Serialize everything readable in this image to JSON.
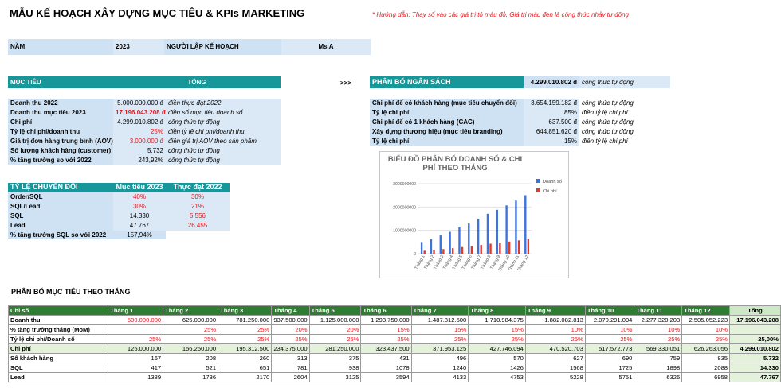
{
  "title": "MẪU KẾ HOẠCH XÂY DỰNG MỤC TIÊU & KPIs MARKETING",
  "guide": "* Hướng dẫn: Thay số vào các giá trị tô màu đỏ. Giá trị màu đen là công thức nhảy tự động",
  "header": {
    "nam_label": "NĂM",
    "nam_value": "2023",
    "nguoi_label": "NGƯỜI LẬP KẾ HOẠCH",
    "nguoi_value": "Ms.A"
  },
  "muc_tieu": {
    "col1": "MỤC TIÊU",
    "col2": "TỔNG",
    "arrow": ">>>",
    "rows": [
      {
        "label": "Doanh thu 2022",
        "value": "5.000.000.000 đ",
        "note": "điền thực đạt 2022"
      },
      {
        "label": "Doanh thu mục tiêu 2023",
        "value": "17.196.043.208 đ",
        "note": "điền số mục tiêu doanh số"
      },
      {
        "label": "Chi phí",
        "value": "4.299.010.802 đ",
        "note": "công thức tự động"
      },
      {
        "label": "Tỷ lệ chi phí/doanh thu",
        "value": "25%",
        "note": "điền tỷ lệ chi phí/doanh thu"
      },
      {
        "label": "Giá trị đơn hàng trung bình (AOV)",
        "value": "3.000.000 đ",
        "note": "điền giá trị AOV theo sản phẩm"
      },
      {
        "label": "Số lượng khách hàng (customer)",
        "value": "5.732",
        "note": "công thức tự động"
      },
      {
        "label": "% tăng trưởng so với 2022",
        "value": "243,92%",
        "note": "công thức tự động"
      }
    ]
  },
  "ngan_sach": {
    "title": "PHÂN BỔ NGÂN SÁCH",
    "total": "4.299.010.802 đ",
    "total_note": "công thức tự động",
    "rows": [
      {
        "label": "Chi phí để có khách hàng (mục tiêu chuyển đổi)",
        "value": "3.654.159.182 đ",
        "note": "công thức tự động"
      },
      {
        "label": "Tỷ lệ chi phí",
        "value": "85%",
        "note": "điền tỷ lệ chi phí"
      },
      {
        "label": "Chi phí để có 1 khách hàng (CAC)",
        "value": "637.500 đ",
        "note": "công thức tự động"
      },
      {
        "label": "Xây dựng thương hiệu (mục tiêu branding)",
        "value": "644.851.620 đ",
        "note": "công thức tự động"
      },
      {
        "label": "Tỷ lệ chi phí",
        "value": "15%",
        "note": "điền tỷ lệ chi phí"
      }
    ]
  },
  "chuyen_doi": {
    "h1": "TỶ LỆ CHUYỂN ĐỔI",
    "h2": "Mục tiêu 2023",
    "h3": "Thực đạt 2022",
    "rows": [
      {
        "label": "Order/SQL",
        "target": "40%",
        "actual": "30%"
      },
      {
        "label": "SQL/Lead",
        "target": "30%",
        "actual": "21%"
      },
      {
        "label": "SQL",
        "target": "14.330",
        "actual": "5.556"
      },
      {
        "label": "Lead",
        "target": "47.767",
        "actual": "26.455"
      }
    ],
    "growth_label": "% tăng trưởng SQL so với 2022",
    "growth_value": "157,94%"
  },
  "chart_data": {
    "type": "bar",
    "title": "BIỂU ĐỒ PHÂN BỔ DOANH SỐ & CHI PHÍ THEO THÁNG",
    "categories": [
      "Tháng 1",
      "Tháng 2",
      "Tháng 3",
      "Tháng 4",
      "Tháng 5",
      "Tháng 6",
      "Tháng 7",
      "Tháng 8",
      "Tháng 9",
      "Tháng 10",
      "Tháng 11",
      "Tháng 12"
    ],
    "ylim": [
      0,
      3000000000
    ],
    "yticks": [
      "0",
      "1000000000",
      "2000000000",
      "3000000000"
    ],
    "series": [
      {
        "name": "Doanh số",
        "color": "#3d73dd",
        "values": [
          500000000,
          625000000,
          781250000,
          937500000,
          1125000000,
          1293750000,
          1487812500,
          1710984375,
          1882082813,
          2070291094,
          2277320203,
          2505052223
        ]
      },
      {
        "name": "Chi phí",
        "color": "#dc3b2f",
        "values": [
          125000000,
          156250000,
          195312500,
          234375000,
          281250000,
          323437500,
          371953125,
          427746094,
          470520703,
          517572773,
          569330051,
          626263056
        ]
      }
    ]
  },
  "monthly": {
    "section_title": "PHÂN BỔ MỤC TIÊU THEO THÁNG",
    "headers": [
      "Chỉ số",
      "Tháng 1",
      "Tháng 2",
      "Tháng 3",
      "Tháng 4",
      "Tháng 5",
      "Tháng 6",
      "Tháng 7",
      "Tháng 8",
      "Tháng 9",
      "Tháng 10",
      "Tháng 11",
      "Tháng 12",
      "Tổng"
    ],
    "rows": [
      {
        "label": "Doanh thu",
        "vals": [
          "500.000.000",
          "625.000.000",
          "781.250.000",
          "937.500.000",
          "1.125.000.000",
          "1.293.750.000",
          "1.487.812.500",
          "1.710.984.375",
          "1.882.082.813",
          "2.070.291.094",
          "2.277.320.203",
          "2.505.052.223"
        ],
        "total": "17.196.043.208"
      },
      {
        "label": "% tăng trưởng tháng (MoM)",
        "vals": [
          "",
          "25%",
          "25%",
          "20%",
          "20%",
          "15%",
          "15%",
          "15%",
          "10%",
          "10%",
          "10%",
          "10%"
        ],
        "total": ""
      },
      {
        "label": "Tỷ lệ chi phí/Doanh số",
        "vals": [
          "25%",
          "25%",
          "25%",
          "25%",
          "25%",
          "25%",
          "25%",
          "25%",
          "25%",
          "25%",
          "25%",
          "25%"
        ],
        "total": "25,00%"
      },
      {
        "label": "Chi phí",
        "vals": [
          "125.000.000",
          "156.250.000",
          "195.312.500",
          "234.375.000",
          "281.250.000",
          "323.437.500",
          "371.953.125",
          "427.746.094",
          "470.520.703",
          "517.572.773",
          "569.330.051",
          "626.263.056"
        ],
        "total": "4.299.010.802"
      },
      {
        "label": "Số khách hàng",
        "vals": [
          "167",
          "208",
          "260",
          "313",
          "375",
          "431",
          "496",
          "570",
          "627",
          "690",
          "759",
          "835"
        ],
        "total": "5.732"
      },
      {
        "label": "SQL",
        "vals": [
          "417",
          "521",
          "651",
          "781",
          "938",
          "1078",
          "1240",
          "1426",
          "1568",
          "1725",
          "1898",
          "2088"
        ],
        "total": "14.330"
      },
      {
        "label": "Lead",
        "vals": [
          "1389",
          "1736",
          "2170",
          "2604",
          "3125",
          "3594",
          "4133",
          "4753",
          "5228",
          "5751",
          "6326",
          "6958"
        ],
        "total": "47.767"
      }
    ]
  }
}
